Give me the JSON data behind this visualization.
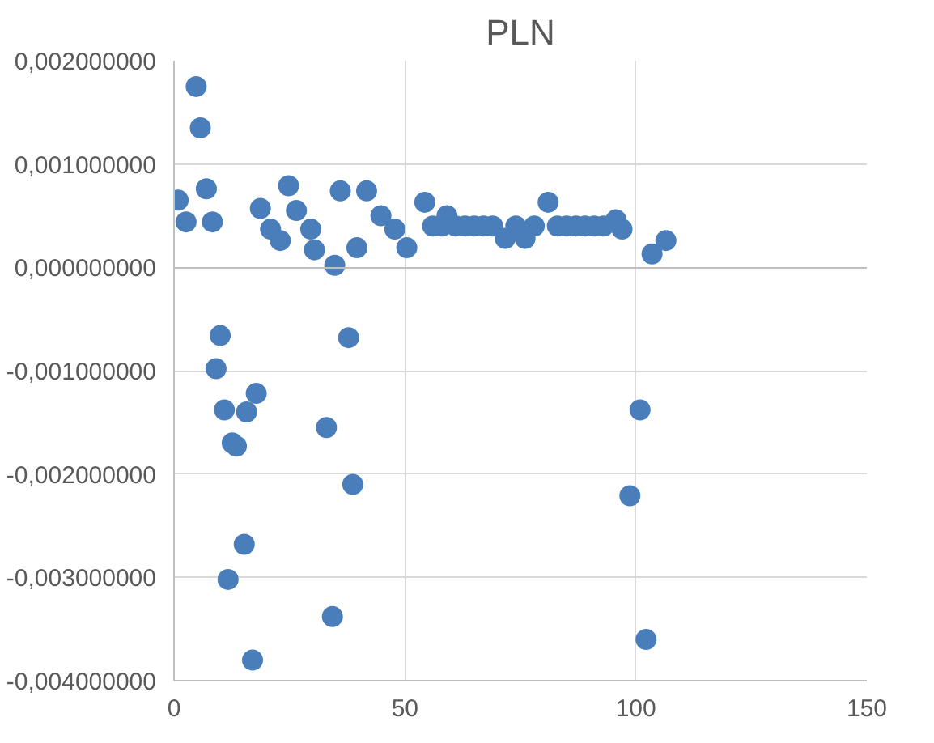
{
  "chart_data": {
    "type": "scatter",
    "title": "PLN",
    "marker": "circle",
    "grid": true,
    "xlim": [
      0,
      150
    ],
    "xticks": [
      0,
      50,
      100,
      150
    ],
    "ylim": [
      -0.004,
      0.002
    ],
    "yticks": [
      {
        "value": -0.004,
        "label": "-0,004000000"
      },
      {
        "value": -0.003,
        "label": "-0,003000000"
      },
      {
        "value": -0.002,
        "label": "-0,002000000"
      },
      {
        "value": -0.001,
        "label": "-0,001000000"
      },
      {
        "value": 0,
        "label": "0,000000000"
      },
      {
        "value": 0.001,
        "label": "0,001000000"
      },
      {
        "value": 0.002,
        "label": "0,002000000"
      }
    ],
    "series": [
      {
        "color": "#4a7ebb",
        "x": [
          0.9,
          2.6,
          4.8,
          5.7,
          7,
          8.3,
          18.7,
          20.9,
          23,
          24.8,
          26.5,
          29.6,
          30.4,
          34.8,
          36,
          39.6,
          41.7,
          44.8,
          47.8,
          50.4,
          54.3,
          59.1,
          56,
          58,
          61,
          63,
          65,
          67,
          69,
          71.7,
          74,
          76,
          78,
          81,
          83,
          85,
          87,
          89,
          91,
          93,
          95.7,
          97,
          103.5,
          106.5,
          10,
          37.8,
          9.1,
          17.8,
          10.9,
          15.7,
          33,
          13.5,
          12.6,
          38.7,
          15.2,
          11.7,
          34.3,
          17,
          100.9,
          98.7,
          102.2
        ],
        "values": [
          0.00065,
          0.00044,
          0.00175,
          0.00135,
          0.00076,
          0.00044,
          0.00057,
          0.00037,
          0.00026,
          0.00079,
          0.00055,
          0.00037,
          0.00017,
          2e-05,
          0.00074,
          0.00019,
          0.00074,
          0.0005,
          0.00037,
          0.00019,
          0.00063,
          0.0005,
          0.0004,
          0.0004,
          0.0004,
          0.0004,
          0.0004,
          0.0004,
          0.0004,
          0.00028,
          0.0004,
          0.00028,
          0.0004,
          0.00063,
          0.0004,
          0.0004,
          0.0004,
          0.0004,
          0.0004,
          0.0004,
          0.00046,
          0.00037,
          0.00013,
          0.00026,
          -0.00066,
          -0.00068,
          -0.00098,
          -0.00122,
          -0.00138,
          -0.0014,
          -0.00155,
          -0.00173,
          -0.0017,
          -0.0021,
          -0.00268,
          -0.00302,
          -0.00338,
          -0.0038,
          -0.00138,
          -0.00221,
          -0.0036
        ]
      }
    ]
  }
}
